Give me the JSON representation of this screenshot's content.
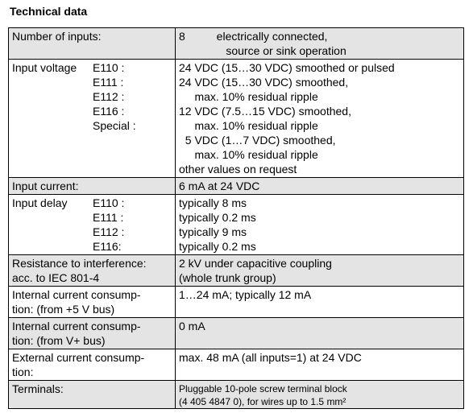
{
  "title": "Technical data",
  "rows": [
    {
      "label_lines": [
        [
          "Number of inputs:",
          ""
        ]
      ],
      "value_lines": [
        "8          electrically connected,",
        "               source or sink operation"
      ]
    },
    {
      "label_lines": [
        [
          "Input voltage",
          "E110 :"
        ],
        [
          "",
          "E111 :"
        ],
        [
          "",
          "E112 :"
        ],
        [
          "",
          "E116 :"
        ],
        [
          "",
          "Special :"
        ]
      ],
      "value_lines": [
        "24 VDC (15…30 VDC) smoothed or pulsed",
        "24 VDC (15…30 VDC) smoothed,",
        "     max. 10% residual ripple",
        "12 VDC (7.5…15 VDC) smoothed,",
        "     max. 10% residual ripple",
        "  5 VDC (1…7 VDC) smoothed,",
        "     max. 10% residual ripple",
        "other values on request"
      ]
    },
    {
      "label_lines": [
        [
          "Input current:",
          ""
        ]
      ],
      "value_lines": [
        "6 mA at 24 VDC"
      ]
    },
    {
      "label_lines": [
        [
          "Input delay",
          "E110 :"
        ],
        [
          "",
          "E111 :"
        ],
        [
          "",
          "E112 :"
        ],
        [
          "",
          "E116:"
        ]
      ],
      "value_lines": [
        "typically 8 ms",
        "typically 0.2 ms",
        "typically 9 ms",
        "typically 0.2 ms"
      ]
    },
    {
      "label_lines": [
        [
          "Resistance to interference:",
          ""
        ],
        [
          "acc. to IEC 801-4",
          ""
        ]
      ],
      "value_lines": [
        "2 kV under capacitive coupling",
        "(whole trunk group)"
      ]
    },
    {
      "label_lines": [
        [
          "Internal current consump-",
          ""
        ],
        [
          "tion: (from +5 V bus)",
          ""
        ]
      ],
      "value_lines": [
        "1…24 mA; typically 12 mA"
      ]
    },
    {
      "label_lines": [
        [
          "Internal current consump-",
          ""
        ],
        [
          "tion: (from V+ bus)",
          ""
        ]
      ],
      "value_lines": [
        "0 mA"
      ]
    },
    {
      "label_lines": [
        [
          "External current consump-",
          ""
        ],
        [
          "tion:",
          ""
        ]
      ],
      "value_lines": [
        "max. 48 mA (all inputs=1) at 24 VDC"
      ]
    },
    {
      "label_lines": [
        [
          "Terminals:",
          ""
        ]
      ],
      "value_lines": [
        "Pluggable 10-pole screw terminal block",
        "(4 405 4847 0), for wires up to 1.5 mm²"
      ]
    }
  ]
}
